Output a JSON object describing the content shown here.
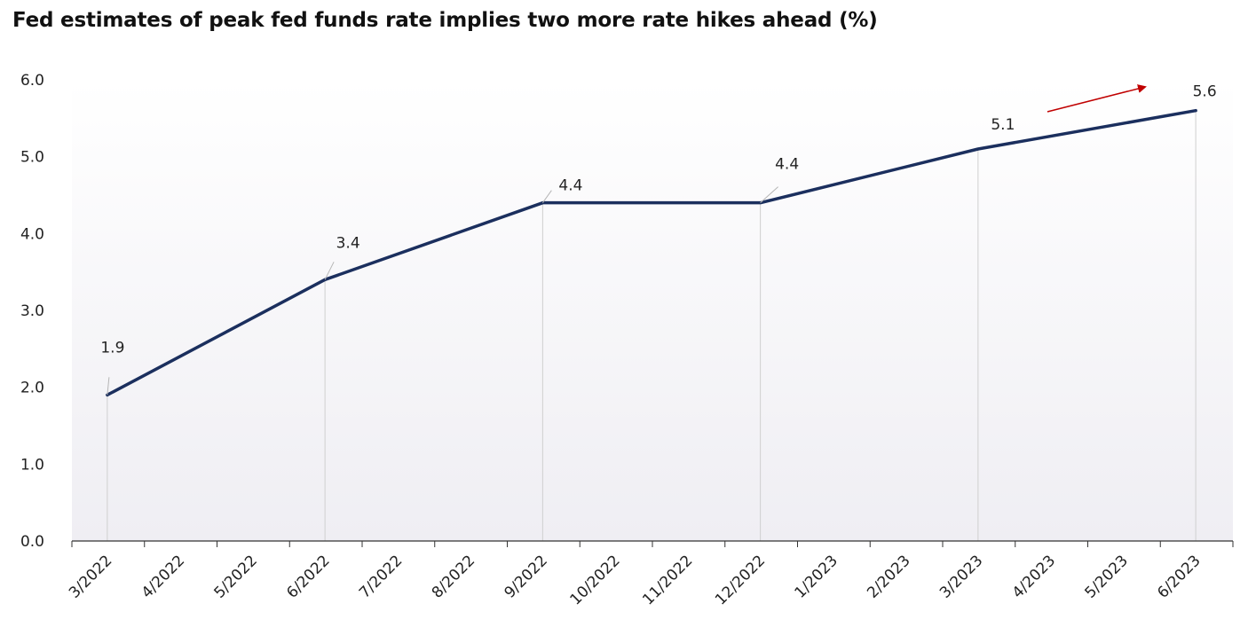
{
  "chart_data": {
    "type": "line",
    "title": "Fed estimates of peak fed funds rate implies two more rate hikes ahead (%)",
    "xlabel": "",
    "ylabel": "",
    "categories": [
      "3/2022",
      "4/2022",
      "5/2022",
      "6/2022",
      "7/2022",
      "8/2022",
      "9/2022",
      "10/2022",
      "11/2022",
      "12/2022",
      "1/2023",
      "2/2023",
      "3/2023",
      "4/2023",
      "5/2023",
      "6/2023"
    ],
    "series": [
      {
        "points": [
          {
            "x": "3/2022",
            "y": 1.9
          },
          {
            "x": "6/2022",
            "y": 3.4
          },
          {
            "x": "9/2022",
            "y": 4.4
          },
          {
            "x": "12/2022",
            "y": 4.4
          },
          {
            "x": "3/2023",
            "y": 5.1
          },
          {
            "x": "6/2023",
            "y": 5.6
          }
        ],
        "color": "#1b2f5e"
      }
    ],
    "data_labels": [
      "1.9",
      "3.4",
      "4.4",
      "4.4",
      "5.1",
      "5.6"
    ],
    "y_ticks": [
      "0.0",
      "1.0",
      "2.0",
      "3.0",
      "4.0",
      "5.0",
      "6.0"
    ],
    "ylim": [
      0,
      6
    ],
    "grid": false,
    "legend": "none",
    "annotation": {
      "type": "arrow",
      "color": "#c00000",
      "direction": "up-right"
    }
  }
}
